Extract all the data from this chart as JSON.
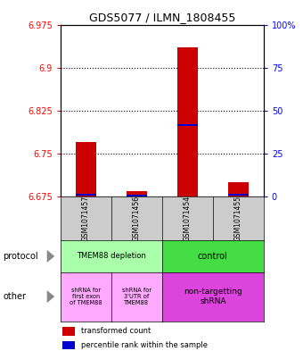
{
  "title": "GDS5077 / ILMN_1808455",
  "samples": [
    "GSM1071457",
    "GSM1071456",
    "GSM1071454",
    "GSM1071455"
  ],
  "red_values": [
    6.77,
    6.685,
    6.935,
    6.7
  ],
  "blue_values": [
    6.678,
    6.676,
    6.8,
    6.678
  ],
  "ymin": 6.675,
  "ymax": 6.975,
  "yticks_left": [
    6.675,
    6.75,
    6.825,
    6.9,
    6.975
  ],
  "yticks_right": [
    0,
    25,
    50,
    75,
    100
  ],
  "ytick_labels_left": [
    "6.675",
    "6.75",
    "6.825",
    "6.9",
    "6.975"
  ],
  "ytick_labels_right": [
    "0",
    "25",
    "50",
    "75",
    "100%"
  ],
  "dotted_yticks": [
    6.9,
    6.825,
    6.75
  ],
  "protocol_labels": [
    "TMEM88 depletion",
    "control"
  ],
  "protocol_colors": [
    "#aaffaa",
    "#44dd44"
  ],
  "other_labels": [
    "shRNA for\nfirst exon\nof TMEM88",
    "shRNA for\n3'UTR of\nTMEM88",
    "non-targetting\nshRNA"
  ],
  "other_colors_light": "#ffaaff",
  "other_colors_bright": "#dd44dd",
  "red_color": "#cc0000",
  "blue_color": "#0000cc",
  "bar_width": 0.4,
  "bg_color": "#ffffff",
  "label_area_bg": "#cccccc"
}
